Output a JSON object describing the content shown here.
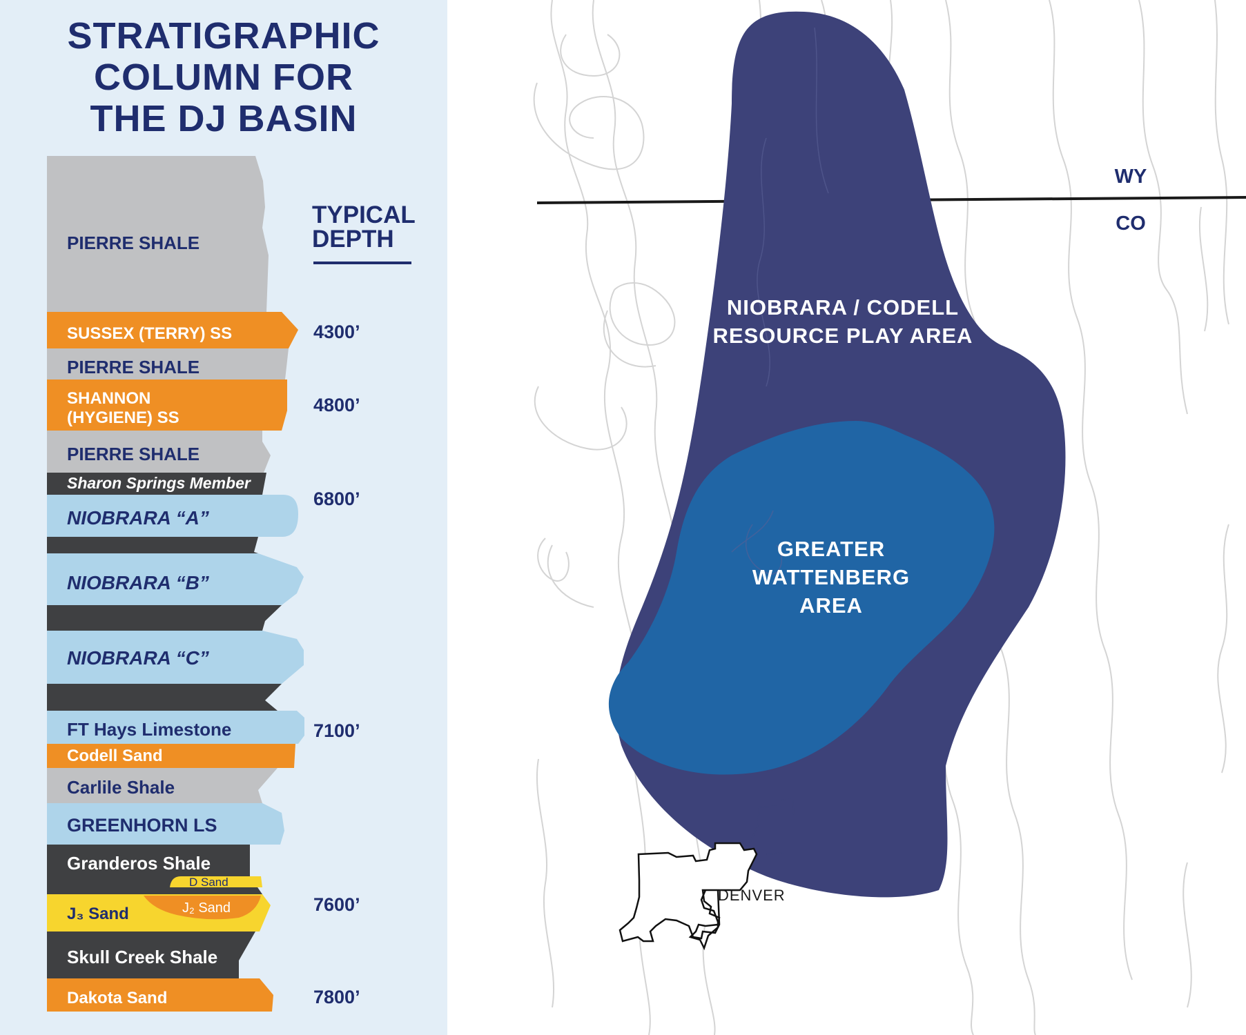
{
  "title": {
    "line1": "STRATIGRAPHIC",
    "line2": "COLUMN FOR",
    "line3": "THE DJ BASIN"
  },
  "depth_header": {
    "line1": "TYPICAL",
    "line2": "DEPTH"
  },
  "colors": {
    "shale_gray": "#c0c1c3",
    "sandstone_orange": "#ef8f24",
    "dark_shale": "#3f4042",
    "limestone_blue": "#aed4ea",
    "sand_yellow": "#f7d52e",
    "navy_text": "#1f2d6e",
    "panel_bg": "#e3eef7",
    "play_area": "#3d4279",
    "wattenberg": "#2065a5",
    "contour": "#d4d4d4"
  },
  "layers": [
    {
      "name": "PIERRE SHALE",
      "type": "shale_gray"
    },
    {
      "name": "SUSSEX (TERRY) SS",
      "type": "sandstone_orange"
    },
    {
      "name": "PIERRE SHALE",
      "type": "shale_gray"
    },
    {
      "name": "SHANNON",
      "name2": "(HYGIENE) SS",
      "type": "sandstone_orange"
    },
    {
      "name": "PIERRE SHALE",
      "type": "shale_gray"
    },
    {
      "name": "Sharon Springs Member",
      "type": "dark_shale"
    },
    {
      "name": "NIOBRARA “A”",
      "type": "limestone_blue"
    },
    {
      "name": "",
      "type": "dark_shale"
    },
    {
      "name": "NIOBRARA “B”",
      "type": "limestone_blue"
    },
    {
      "name": "",
      "type": "dark_shale"
    },
    {
      "name": "NIOBRARA “C”",
      "type": "limestone_blue"
    },
    {
      "name": "",
      "type": "dark_shale"
    },
    {
      "name": "FT Hays Limestone",
      "type": "limestone_blue"
    },
    {
      "name": "Codell Sand",
      "type": "sandstone_orange"
    },
    {
      "name": "Carlile Shale",
      "type": "shale_gray"
    },
    {
      "name": "GREENHORN LS",
      "type": "limestone_blue"
    },
    {
      "name": "Granderos Shale",
      "type": "dark_shale"
    },
    {
      "name": "D Sand",
      "type": "sand_yellow"
    },
    {
      "name": "J₃ Sand",
      "type": "sand_yellow"
    },
    {
      "name": "J₂ Sand",
      "type": "sandstone_orange"
    },
    {
      "name": "Skull Creek Shale",
      "type": "dark_shale"
    },
    {
      "name": "Dakota Sand",
      "type": "sandstone_orange"
    }
  ],
  "depths": [
    "4300’",
    "4800’",
    "6800’",
    "7100’",
    "7600’",
    "7800’"
  ],
  "map": {
    "state_north": "WY",
    "state_south": "CO",
    "play_area_line1": "NIOBRARA / CODELL",
    "play_area_line2": "RESOURCE PLAY AREA",
    "wattenberg_line1": "GREATER",
    "wattenberg_line2": "WATTENBERG",
    "wattenberg_line3": "AREA",
    "city": "DENVER"
  }
}
